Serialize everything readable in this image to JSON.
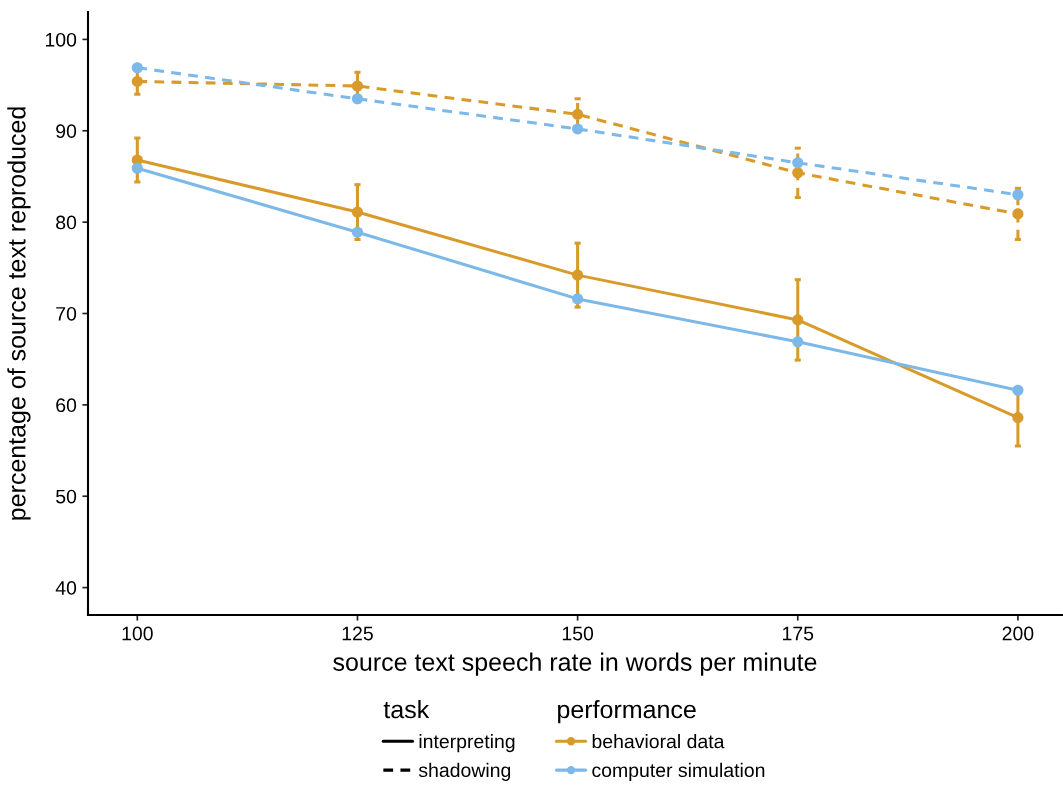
{
  "chart_data": {
    "type": "line",
    "xlabel": "source text speech rate in words per minute",
    "ylabel": "percentage of source text reproduced",
    "x": [
      100,
      125,
      150,
      175,
      200
    ],
    "xlim": [
      94.4,
      205
    ],
    "xticks": [
      100,
      125,
      150,
      175,
      200
    ],
    "ylim": [
      37,
      103
    ],
    "yticks": [
      40,
      50,
      60,
      70,
      80,
      90,
      100
    ],
    "grid": false,
    "marker": "circle",
    "legend": "bottom",
    "legend_title": "performance",
    "annotations": [
      "task",
      "interpreting",
      "shadowing"
    ],
    "series": [
      {
        "name": "behavioral data",
        "color": "#d89b2b",
        "line_style": "solid",
        "values": [
          86.8,
          81.1,
          74.2,
          69.3,
          58.6
        ],
        "errors": [
          2.4,
          3.0,
          3.5,
          4.4,
          3.1
        ]
      },
      {
        "name": "computer simulation",
        "color": "#7cb8e8",
        "line_style": "solid",
        "values": [
          85.9,
          78.9,
          71.6,
          66.9,
          61.6
        ]
      },
      {
        "color": "#d89b2b",
        "line_style": "dashed",
        "values": [
          95.4,
          94.9,
          91.8,
          85.4,
          80.9
        ],
        "errors": [
          1.4,
          1.5,
          1.7,
          2.7,
          2.8
        ]
      },
      {
        "color": "#7cb8e8",
        "line_style": "dashed",
        "values": [
          96.9,
          93.5,
          90.2,
          86.5,
          83.0
        ]
      }
    ]
  }
}
